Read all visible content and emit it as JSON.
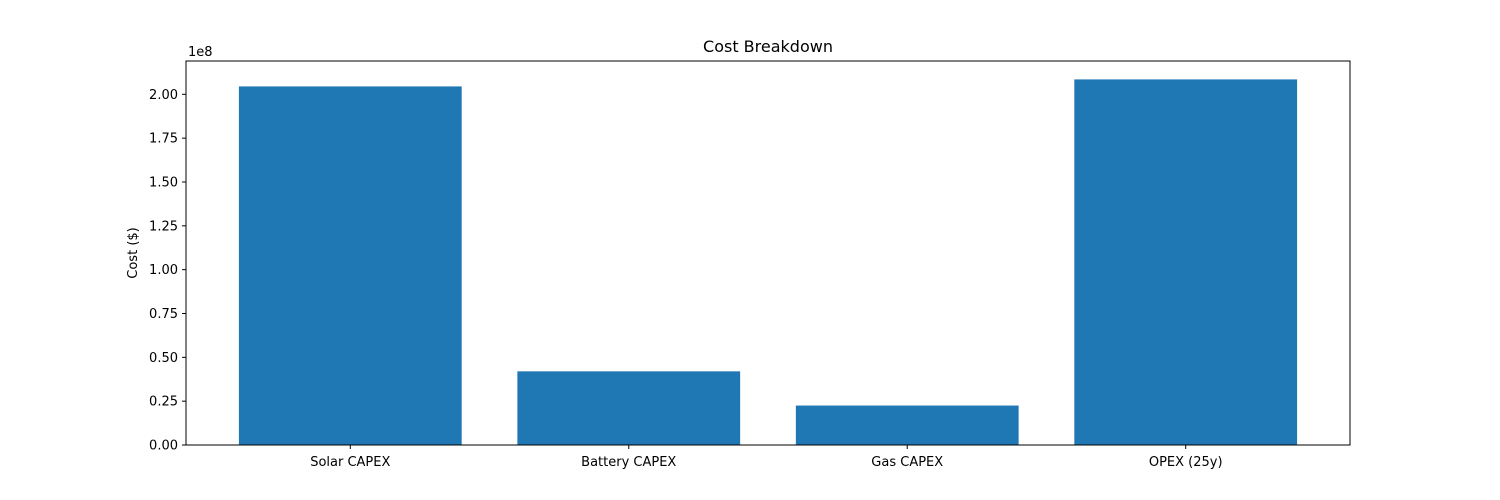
{
  "chart_data": {
    "type": "bar",
    "title": "Cost Breakdown",
    "xlabel": "",
    "ylabel": "Cost ($)",
    "offset_label": "1e8",
    "categories": [
      "Solar CAPEX",
      "Battery CAPEX",
      "Gas CAPEX",
      "OPEX (25y)"
    ],
    "values": [
      204500000,
      42000000,
      22500000,
      208500000
    ],
    "ylim": [
      0,
      219000000
    ],
    "yticks": [
      0,
      25000000,
      50000000,
      75000000,
      100000000,
      125000000,
      150000000,
      175000000,
      200000000
    ],
    "ytick_labels": [
      "0.00",
      "0.25",
      "0.50",
      "0.75",
      "1.00",
      "1.25",
      "1.50",
      "1.75",
      "2.00"
    ],
    "bar_color": "#1f77b4",
    "grid": false,
    "legend": "none"
  }
}
